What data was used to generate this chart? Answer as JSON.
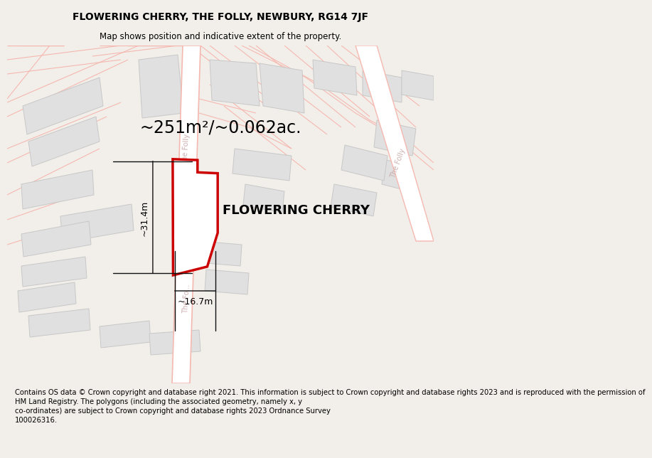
{
  "title_line1": "FLOWERING CHERRY, THE FOLLY, NEWBURY, RG14 7JF",
  "title_line2": "Map shows position and indicative extent of the property.",
  "property_label": "FLOWERING CHERRY",
  "area_label": "~251m²/~0.062ac.",
  "width_label": "~16.7m",
  "height_label": "~31.4m",
  "footer_text": "Contains OS data © Crown copyright and database right 2021. This information is subject to Crown copyright and database rights 2023 and is reproduced with the permission of\nHM Land Registry. The polygons (including the associated geometry, namely x, y\nco-ordinates) are subject to Crown copyright and database rights 2023 Ordnance Survey\n100026316.",
  "bg_color": "#f2efea",
  "map_bg_color": "#ffffff",
  "road_color": "#f5b8b0",
  "building_fill": "#e0e0e0",
  "building_edge": "#c8c8c8",
  "property_color": "#cc0000",
  "dim_color": "#111111",
  "road_label_color": "#c8a8a8",
  "title_fontsize": 10,
  "subtitle_fontsize": 8.5,
  "area_fontsize": 17,
  "prop_label_fontsize": 13,
  "dim_fontsize": 9,
  "footer_fontsize": 7.2,
  "road_label_size": 7
}
